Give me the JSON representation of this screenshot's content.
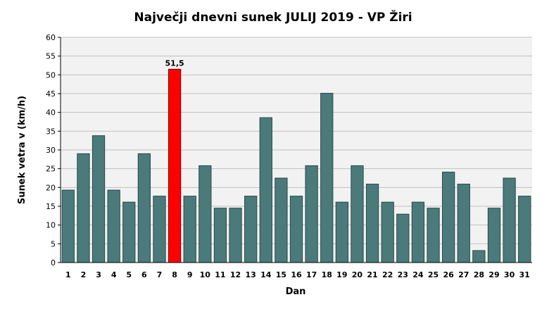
{
  "chart_data": {
    "type": "bar",
    "title": "Največji dnevni sunek JULIJ 2019 - VP Žiri",
    "xlabel": "Dan",
    "ylabel": "Sunek vetra  v (km/h)",
    "ylim": [
      0,
      60
    ],
    "yticks": [
      "0",
      "5",
      "10",
      "15",
      "20",
      "25",
      "30",
      "35",
      "40",
      "45",
      "50",
      "55",
      "60"
    ],
    "grid": true,
    "categories": [
      "1",
      "2",
      "3",
      "4",
      "5",
      "6",
      "7",
      "8",
      "9",
      "10",
      "11",
      "12",
      "13",
      "14",
      "15",
      "16",
      "17",
      "18",
      "19",
      "20",
      "21",
      "22",
      "23",
      "24",
      "25",
      "26",
      "27",
      "28",
      "29",
      "30",
      "31"
    ],
    "values": [
      19.3,
      29.0,
      33.8,
      19.3,
      16.1,
      29.0,
      17.7,
      51.5,
      17.7,
      25.8,
      14.5,
      14.5,
      17.7,
      38.6,
      22.5,
      17.7,
      25.8,
      45.1,
      16.1,
      25.8,
      20.9,
      16.1,
      12.9,
      16.1,
      14.5,
      24.1,
      20.9,
      3.2,
      14.5,
      22.5,
      17.7
    ],
    "highlight_index": 7,
    "data_labels": [
      {
        "index": 7,
        "text": "51,5"
      }
    ],
    "colors": {
      "bar": "#4a7a79",
      "bar_border": "#2b4a4a",
      "highlight": "#ff0000",
      "highlight_border": "#7a0000",
      "plot_background": "#f2f2f2",
      "grid": "#c0c0c0"
    }
  }
}
